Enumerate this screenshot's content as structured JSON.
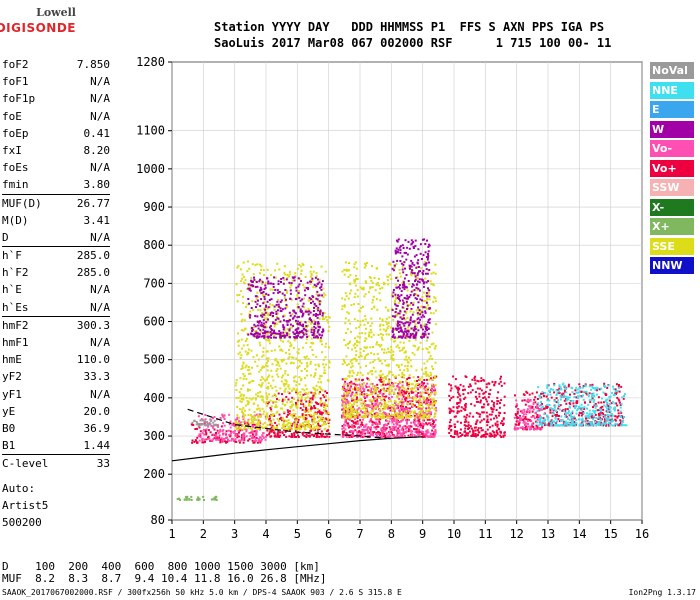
{
  "logo": {
    "line1": "Lowell",
    "line2": "DIGISONDE"
  },
  "header": {
    "row1": "Station YYYY DAY   DDD HHMMSS P1  FFS S AXN PPS IGA PS",
    "row2": "SaoLuis 2017 Mar08 067 002000 RSF      1 715 100 00- 11"
  },
  "params": [
    {
      "name": "foF2",
      "value": "7.850"
    },
    {
      "name": "foF1",
      "value": "N/A"
    },
    {
      "name": "foF1p",
      "value": "N/A"
    },
    {
      "name": "foE",
      "value": "N/A"
    },
    {
      "name": "foEp",
      "value": "0.41"
    },
    {
      "name": "fxI",
      "value": "8.20"
    },
    {
      "name": "foEs",
      "value": "N/A"
    },
    {
      "name": "fmin",
      "value": "3.80"
    },
    {
      "name": "MUF(D)",
      "value": "26.77",
      "sep": true
    },
    {
      "name": "M(D)",
      "value": "3.41"
    },
    {
      "name": "D",
      "value": "N/A"
    },
    {
      "name": "h`F",
      "value": "285.0",
      "sep": true
    },
    {
      "name": "h`F2",
      "value": "285.0"
    },
    {
      "name": "h`E",
      "value": "N/A"
    },
    {
      "name": "h`Es",
      "value": "N/A"
    },
    {
      "name": "hmF2",
      "value": "300.3",
      "sep": true
    },
    {
      "name": "hmF1",
      "value": "N/A"
    },
    {
      "name": "hmE",
      "value": "110.0"
    },
    {
      "name": "yF2",
      "value": "33.3"
    },
    {
      "name": "yF1",
      "value": "N/A"
    },
    {
      "name": "yE",
      "value": "20.0"
    },
    {
      "name": "B0",
      "value": "36.9"
    },
    {
      "name": "B1",
      "value": "1.44"
    },
    {
      "name": "C-level",
      "value": "33",
      "sep": true
    }
  ],
  "auto": {
    "line1": "Auto:",
    "line2": "Artist5",
    "line3": "500200"
  },
  "legend": [
    {
      "label": "NoVal",
      "color": "#9a9a9a"
    },
    {
      "label": "NNE",
      "color": "#3ee0f0"
    },
    {
      "label": "E",
      "color": "#3aa6ee"
    },
    {
      "label": "W",
      "color": "#a100a6"
    },
    {
      "label": "Vo-",
      "color": "#ff4fb3"
    },
    {
      "label": "Vo+",
      "color": "#ee0040"
    },
    {
      "label": "SSW",
      "color": "#f6b2b2"
    },
    {
      "label": "X-",
      "color": "#1f7a1f"
    },
    {
      "label": "X+",
      "color": "#80b860"
    },
    {
      "label": "SSE",
      "color": "#dcdc18"
    },
    {
      "label": "NNW",
      "color": "#1010c8"
    }
  ],
  "chart_data": {
    "type": "scatter",
    "xlim": [
      1,
      16
    ],
    "ylim": [
      80,
      1280
    ],
    "x_ticks": [
      1,
      2,
      3,
      4,
      5,
      6,
      7,
      8,
      9,
      10,
      11,
      12,
      13,
      14,
      15,
      16
    ],
    "y_ticks": [
      80,
      200,
      300,
      400,
      500,
      600,
      700,
      800,
      900,
      1000,
      1100,
      1280
    ],
    "grid": true,
    "series": [
      {
        "name": "Vo+",
        "clusters": [
          {
            "x": [
              1.6,
              3.8
            ],
            "y": [
              285,
              340
            ]
          },
          {
            "x": [
              4.0,
              6.0
            ],
            "y": [
              300,
              420
            ]
          },
          {
            "x": [
              6.4,
              9.4
            ],
            "y": [
              300,
              460
            ]
          },
          {
            "x": [
              9.8,
              11.6
            ],
            "y": [
              300,
              460
            ]
          },
          {
            "x": [
              11.9,
              12.8
            ],
            "y": [
              320,
              420
            ]
          },
          {
            "x": [
              12.8,
              15.4
            ],
            "y": [
              330,
              440
            ]
          }
        ]
      },
      {
        "name": "Vo-",
        "clusters": [
          {
            "x": [
              1.8,
              4.0
            ],
            "y": [
              290,
              360
            ]
          },
          {
            "x": [
              6.4,
              9.4
            ],
            "y": [
              300,
              440
            ]
          },
          {
            "x": [
              11.9,
              12.8
            ],
            "y": [
              320,
              400
            ]
          }
        ]
      },
      {
        "name": "SSE",
        "clusters": [
          {
            "x": [
              3.0,
              6.0
            ],
            "y": [
              320,
              760
            ]
          },
          {
            "x": [
              6.4,
              9.4
            ],
            "y": [
              350,
              760
            ]
          }
        ]
      },
      {
        "name": "W",
        "clusters": [
          {
            "x": [
              3.4,
              5.8
            ],
            "y": [
              560,
              720
            ]
          },
          {
            "x": [
              8.0,
              9.2
            ],
            "y": [
              560,
              820
            ]
          }
        ]
      },
      {
        "name": "NNE",
        "clusters": [
          {
            "x": [
              12.6,
              15.5
            ],
            "y": [
              330,
              440
            ]
          }
        ]
      },
      {
        "name": "X+",
        "clusters": [
          {
            "x": [
              1.1,
              2.4
            ],
            "y": [
              135,
              145
            ]
          }
        ]
      },
      {
        "name": "NoVal",
        "clusters": [
          {
            "x": [
              1.6,
              2.4
            ],
            "y": [
              330,
              345
            ]
          }
        ]
      }
    ],
    "curve_hprime": [
      [
        1,
        235
      ],
      [
        2,
        245
      ],
      [
        3,
        255
      ],
      [
        4,
        264
      ],
      [
        5,
        272
      ],
      [
        6,
        280
      ],
      [
        7,
        288
      ],
      [
        8,
        294
      ],
      [
        9,
        298
      ]
    ],
    "curve_dashed": [
      [
        1.5,
        370
      ],
      [
        3,
        330
      ],
      [
        5,
        310
      ],
      [
        7,
        300
      ],
      [
        8,
        293
      ]
    ]
  },
  "footer": {
    "row1": "D    100  200  400  600  800 1000 1500 3000 [km]",
    "row2": "MUF  8.2  8.3  8.7  9.4 10.4 11.8 16.0 26.8 [MHz]",
    "row3": "SAAOK_2017067002000.RSF / 300fx256h 50 kHz 5.0 km / DPS-4 SAAOK 903 / 2.6 S 315.8 E",
    "version": "Ion2Png 1.3.17"
  }
}
